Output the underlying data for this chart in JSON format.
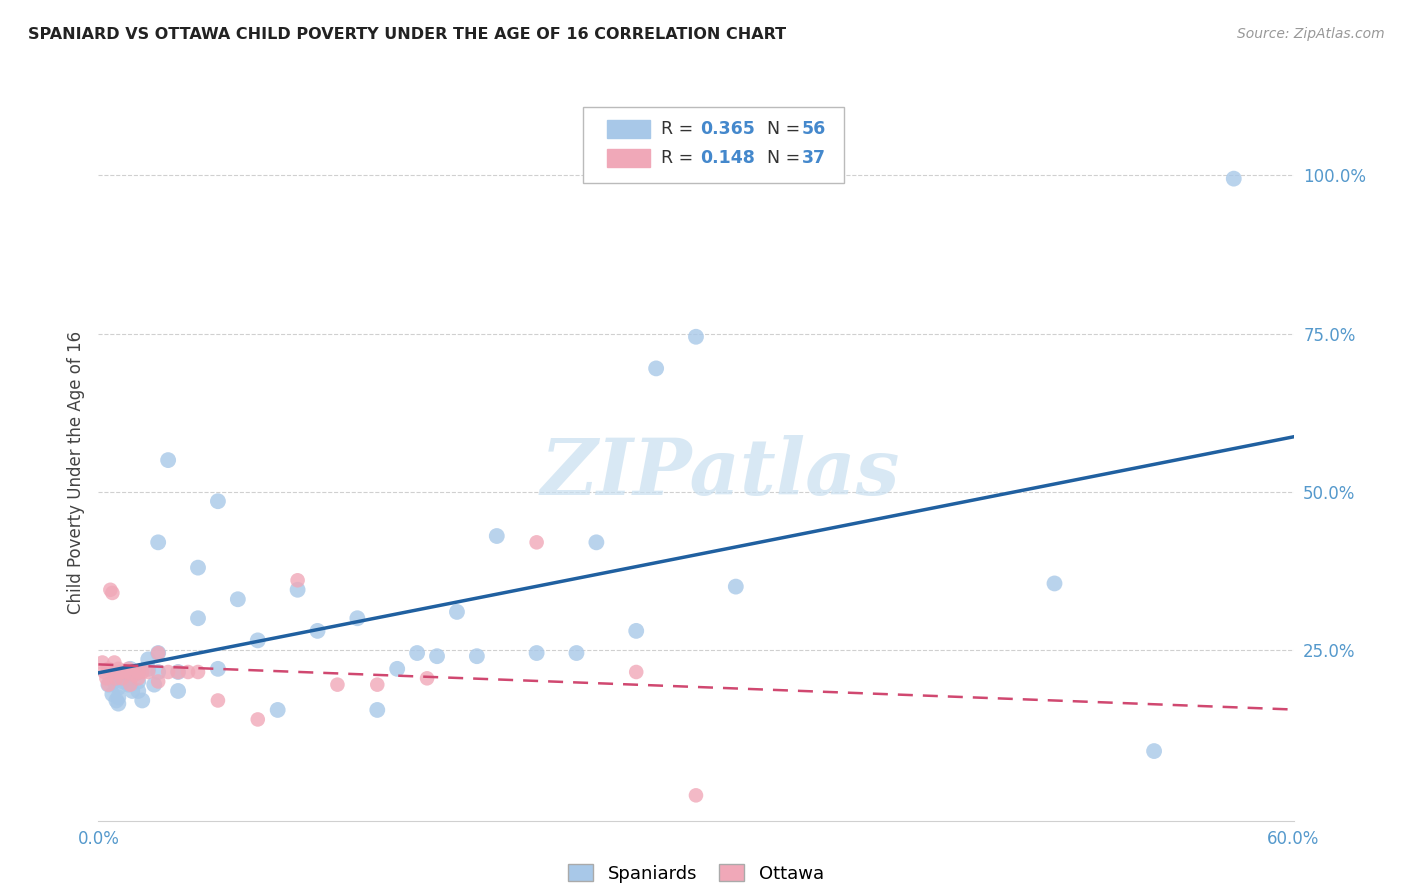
{
  "title": "SPANIARD VS OTTAWA CHILD POVERTY UNDER THE AGE OF 16 CORRELATION CHART",
  "source": "Source: ZipAtlas.com",
  "ylabel": "Child Poverty Under the Age of 16",
  "xlim": [
    0.0,
    0.6
  ],
  "ylim": [
    -0.02,
    1.08
  ],
  "xticks": [
    0.0,
    0.1,
    0.2,
    0.3,
    0.4,
    0.5,
    0.6
  ],
  "yticks": [
    0.25,
    0.5,
    0.75,
    1.0
  ],
  "ytick_labels": [
    "25.0%",
    "50.0%",
    "75.0%",
    "100.0%"
  ],
  "xtick_labels": [
    "0.0%",
    "",
    "",
    "",
    "",
    "",
    "60.0%"
  ],
  "blue_R": 0.365,
  "blue_N": 56,
  "pink_R": 0.148,
  "pink_N": 37,
  "blue_color": "#a8c8e8",
  "pink_color": "#f0a8b8",
  "blue_line_color": "#2060a0",
  "pink_line_color": "#d04870",
  "watermark_color": "#c8dff0",
  "spaniards_x": [
    0.005,
    0.007,
    0.008,
    0.009,
    0.01,
    0.01,
    0.01,
    0.01,
    0.012,
    0.013,
    0.015,
    0.015,
    0.015,
    0.016,
    0.017,
    0.018,
    0.02,
    0.02,
    0.02,
    0.022,
    0.025,
    0.025,
    0.028,
    0.03,
    0.03,
    0.03,
    0.035,
    0.04,
    0.04,
    0.05,
    0.05,
    0.06,
    0.06,
    0.07,
    0.08,
    0.09,
    0.1,
    0.11,
    0.13,
    0.14,
    0.15,
    0.16,
    0.17,
    0.18,
    0.19,
    0.2,
    0.22,
    0.24,
    0.25,
    0.27,
    0.28,
    0.3,
    0.32,
    0.48,
    0.53,
    0.57
  ],
  "spaniards_y": [
    0.195,
    0.18,
    0.2,
    0.17,
    0.19,
    0.21,
    0.165,
    0.175,
    0.2,
    0.215,
    0.205,
    0.21,
    0.195,
    0.22,
    0.185,
    0.215,
    0.2,
    0.185,
    0.215,
    0.17,
    0.235,
    0.22,
    0.195,
    0.245,
    0.215,
    0.42,
    0.55,
    0.215,
    0.185,
    0.38,
    0.3,
    0.485,
    0.22,
    0.33,
    0.265,
    0.155,
    0.345,
    0.28,
    0.3,
    0.155,
    0.22,
    0.245,
    0.24,
    0.31,
    0.24,
    0.43,
    0.245,
    0.245,
    0.42,
    0.28,
    0.695,
    0.745,
    0.35,
    0.355,
    0.09,
    0.995
  ],
  "ottawa_x": [
    0.002,
    0.003,
    0.004,
    0.005,
    0.005,
    0.006,
    0.007,
    0.008,
    0.008,
    0.009,
    0.01,
    0.01,
    0.012,
    0.013,
    0.015,
    0.015,
    0.016,
    0.018,
    0.02,
    0.02,
    0.022,
    0.025,
    0.03,
    0.03,
    0.035,
    0.04,
    0.045,
    0.05,
    0.06,
    0.08,
    0.1,
    0.12,
    0.14,
    0.165,
    0.22,
    0.27,
    0.3
  ],
  "ottawa_y": [
    0.23,
    0.215,
    0.205,
    0.22,
    0.195,
    0.345,
    0.34,
    0.23,
    0.215,
    0.205,
    0.215,
    0.22,
    0.205,
    0.215,
    0.22,
    0.215,
    0.195,
    0.21,
    0.215,
    0.205,
    0.215,
    0.215,
    0.2,
    0.245,
    0.215,
    0.215,
    0.215,
    0.215,
    0.17,
    0.14,
    0.36,
    0.195,
    0.195,
    0.205,
    0.42,
    0.215,
    0.02
  ]
}
